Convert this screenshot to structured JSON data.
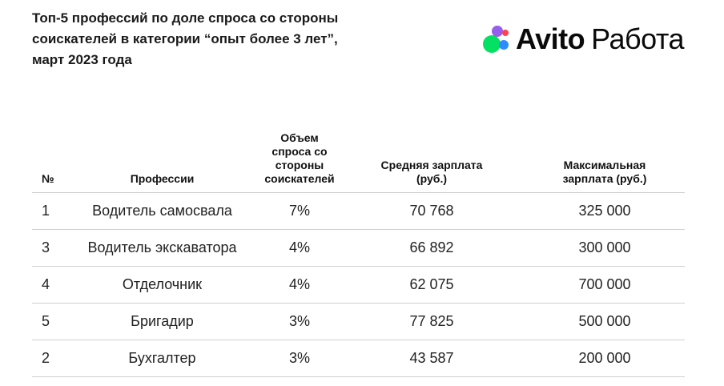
{
  "title_lines": [
    "Топ-5 профессий по доле спроса со стороны",
    "соискателей в категории “опыт более 3 лет”,",
    "март 2023 года"
  ],
  "logo": {
    "brand": "Avito",
    "product": "Работа",
    "colors": {
      "green": "#04e061",
      "blue": "#2d8cff",
      "red": "#ff4053",
      "purple": "#965eeb"
    }
  },
  "table": {
    "headers": {
      "num": [
        "№"
      ],
      "profession": [
        "Профессии"
      ],
      "demand": [
        "Объем",
        "спроса со",
        "стороны",
        "соискателей"
      ],
      "avg_salary": [
        "Средняя зарплата",
        "(руб.)"
      ],
      "max_salary": [
        "Максимальная",
        "зарплата (руб.)"
      ]
    },
    "rows": [
      {
        "num": "1",
        "profession": "Водитель самосвала",
        "demand": "7%",
        "avg_salary": "70 768",
        "max_salary": "325 000"
      },
      {
        "num": "3",
        "profession": "Водитель экскаватора",
        "demand": "4%",
        "avg_salary": "66 892",
        "max_salary": "300 000"
      },
      {
        "num": "4",
        "profession": "Отделочник",
        "demand": "4%",
        "avg_salary": "62 075",
        "max_salary": "700 000"
      },
      {
        "num": "5",
        "profession": "Бригадир",
        "demand": "3%",
        "avg_salary": "77 825",
        "max_salary": "500 000"
      },
      {
        "num": "2",
        "profession": "Бухгалтер",
        "demand": "3%",
        "avg_salary": "43 587",
        "max_salary": "200 000"
      }
    ]
  }
}
